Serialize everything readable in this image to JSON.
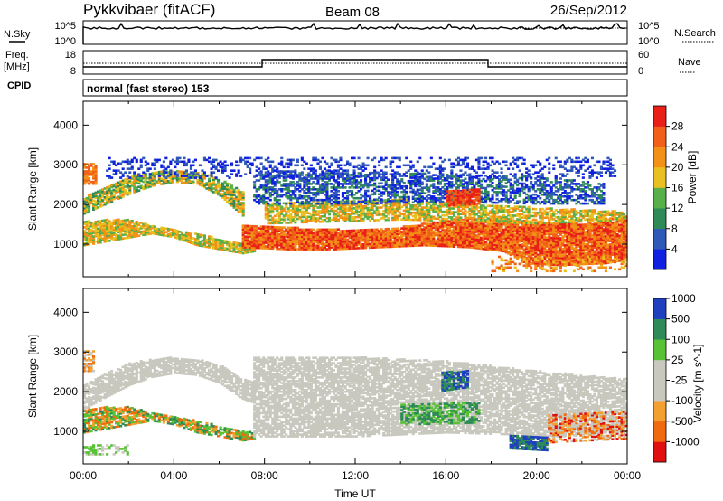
{
  "header": {
    "radar": "Pykkvibaer (fitACF)",
    "beam": "Beam 08",
    "date": "26/Sep/2012"
  },
  "noise_panel": {
    "left_label": "N.Sky",
    "right_label": "N.Search",
    "left_ticks": [
      "10^5",
      "10^0"
    ],
    "right_ticks": [
      "10^5",
      "10^0"
    ]
  },
  "freq_panel": {
    "left_label_1": "Freq.",
    "left_label_2": "[MHz]",
    "right_label": "Nave",
    "left_ticks": [
      "18",
      "8"
    ],
    "right_ticks": [
      "60",
      "0"
    ]
  },
  "cpid": {
    "label": "CPID",
    "value": "normal (fast stereo) 153"
  },
  "colors": {
    "power": [
      "#1020e0",
      "#2f58b8",
      "#2e8b57",
      "#58b04a",
      "#e8c020",
      "#f39018",
      "#f06018",
      "#e82018"
    ],
    "velocity": [
      "#e01010",
      "#f06a10",
      "#f4a030",
      "#c8c8be",
      "#c8c8be",
      "#56c234",
      "#2e8b57",
      "#2040c0"
    ]
  },
  "chart_data": [
    {
      "type": "heatmap",
      "quantity": "power",
      "ylabel": "Slant Range [km]",
      "yticks": [
        1000,
        2000,
        3000,
        4000
      ],
      "ylim": [
        180,
        4600
      ],
      "xlim": [
        0,
        24
      ],
      "colorbar": {
        "label": "Power [dB]",
        "ticks": [
          "4",
          "8",
          "12",
          "16",
          "20",
          "24",
          "28"
        ]
      },
      "bands": [
        {
          "start": 0,
          "end": 7.5,
          "lower": [
            [
              0,
              950
            ],
            [
              1,
              1050
            ],
            [
              2,
              1150
            ],
            [
              3,
              1250
            ],
            [
              4,
              1150
            ],
            [
              5,
              950
            ],
            [
              6,
              850
            ],
            [
              7,
              750
            ],
            [
              7.5,
              800
            ]
          ],
          "upper": [
            [
              0,
              1550
            ],
            [
              1,
              1600
            ],
            [
              2,
              1600
            ],
            [
              3,
              1450
            ],
            [
              4,
              1350
            ],
            [
              5,
              1250
            ],
            [
              6,
              1100
            ],
            [
              7,
              1000
            ],
            [
              7.5,
              950
            ]
          ],
          "levels": [
            3,
            4,
            5
          ],
          "density": 0.85
        },
        {
          "start": 7,
          "end": 24,
          "lower": [
            [
              7,
              900
            ],
            [
              9,
              850
            ],
            [
              11,
              850
            ],
            [
              13,
              900
            ],
            [
              15,
              950
            ],
            [
              17,
              900
            ],
            [
              18.5,
              800
            ],
            [
              19.5,
              500
            ],
            [
              21,
              450
            ],
            [
              23,
              500
            ],
            [
              24,
              600
            ]
          ],
          "upper": [
            [
              7,
              1450
            ],
            [
              9,
              1400
            ],
            [
              11,
              1350
            ],
            [
              13,
              1350
            ],
            [
              15,
              1500
            ],
            [
              17,
              1650
            ],
            [
              18.5,
              1600
            ],
            [
              20,
              1550
            ],
            [
              22,
              1500
            ],
            [
              24,
              1700
            ]
          ],
          "levels": [
            5,
            6,
            7
          ],
          "density": 0.95
        },
        {
          "start": 0,
          "end": 7,
          "lower": [
            [
              0,
              1750
            ],
            [
              1,
              2000
            ],
            [
              2,
              2250
            ],
            [
              3,
              2450
            ],
            [
              4,
              2550
            ],
            [
              5,
              2500
            ],
            [
              6,
              2200
            ],
            [
              7,
              1700
            ]
          ],
          "upper": [
            [
              0,
              2150
            ],
            [
              1,
              2450
            ],
            [
              2,
              2700
            ],
            [
              3,
              2800
            ],
            [
              4,
              2850
            ],
            [
              5,
              2800
            ],
            [
              6,
              2650
            ],
            [
              7,
              2300
            ]
          ],
          "levels": [
            2,
            3,
            4,
            5
          ],
          "density": 0.8
        },
        {
          "start": 8,
          "end": 24,
          "lower": [
            [
              8,
              1500
            ],
            [
              11,
              1550
            ],
            [
              14,
              1600
            ],
            [
              17,
              1550
            ],
            [
              20,
              1500
            ],
            [
              24,
              1600
            ]
          ],
          "upper": [
            [
              8,
              2000
            ],
            [
              11,
              2050
            ],
            [
              14,
              2100
            ],
            [
              17,
              2000
            ],
            [
              20,
              1900
            ],
            [
              24,
              1800
            ]
          ],
          "levels": [
            3,
            4,
            5
          ],
          "density": 0.7
        },
        {
          "start": 7.5,
          "end": 23,
          "lower": [
            [
              7.5,
              2000
            ],
            [
              12,
              2000
            ],
            [
              16,
              2050
            ],
            [
              20,
              2000
            ],
            [
              23,
              2000
            ]
          ],
          "upper": [
            [
              7.5,
              2850
            ],
            [
              12,
              2800
            ],
            [
              16,
              2750
            ],
            [
              20,
              2700
            ],
            [
              23,
              2500
            ]
          ],
          "levels": [
            0,
            1,
            2
          ],
          "density": 0.55
        },
        {
          "start": 1,
          "end": 23.5,
          "lower": [
            [
              1,
              2650
            ],
            [
              24,
              2650
            ]
          ],
          "upper": [
            [
              1,
              3150
            ],
            [
              24,
              3150
            ]
          ],
          "levels": [
            0,
            1
          ],
          "density": 0.25
        },
        {
          "start": 16,
          "end": 17.5,
          "lower": [
            [
              16,
              1950
            ],
            [
              17.5,
              2000
            ]
          ],
          "upper": [
            [
              16,
              2350
            ],
            [
              17.5,
              2400
            ]
          ],
          "levels": [
            6,
            7
          ],
          "density": 0.85
        },
        {
          "start": 0,
          "end": 0.6,
          "lower": [
            [
              0,
              2500
            ],
            [
              0.6,
              2500
            ]
          ],
          "upper": [
            [
              0,
              3000
            ],
            [
              0.6,
              3000
            ]
          ],
          "levels": [
            5,
            6
          ],
          "density": 0.8
        },
        {
          "start": 18,
          "end": 24,
          "lower": [
            [
              18,
              300
            ],
            [
              24,
              300
            ]
          ],
          "upper": [
            [
              18,
              700
            ],
            [
              24,
              700
            ]
          ],
          "levels": [
            4,
            5,
            6
          ],
          "density": 0.3
        }
      ]
    },
    {
      "type": "heatmap",
      "quantity": "velocity",
      "ylabel": "Slant Range [km]",
      "xlabel": "Time UT",
      "yticks": [
        1000,
        2000,
        3000,
        4000
      ],
      "ylim": [
        180,
        4600
      ],
      "xlim": [
        0,
        24
      ],
      "xticks": [
        "00:00",
        "04:00",
        "08:00",
        "12:00",
        "16:00",
        "20:00",
        "00:00"
      ],
      "colorbar": {
        "label": "Velocity [m s^-1]",
        "ticks": [
          "-1000",
          "-500",
          "-100",
          "-25",
          "25",
          "100",
          "500",
          "1000"
        ]
      },
      "bands": [
        {
          "start": 0,
          "end": 7.5,
          "lower": [
            [
              0,
              950
            ],
            [
              1,
              1050
            ],
            [
              2,
              1150
            ],
            [
              3,
              1250
            ],
            [
              4,
              1150
            ],
            [
              5,
              950
            ],
            [
              6,
              850
            ],
            [
              7,
              750
            ],
            [
              7.5,
              800
            ]
          ],
          "upper": [
            [
              0,
              1550
            ],
            [
              1,
              1600
            ],
            [
              2,
              1600
            ],
            [
              3,
              1450
            ],
            [
              4,
              1350
            ],
            [
              5,
              1250
            ],
            [
              6,
              1100
            ],
            [
              7,
              1000
            ],
            [
              7.5,
              950
            ]
          ],
          "levels": [
            1,
            2,
            5,
            6
          ],
          "density": 0.8
        },
        {
          "start": 0,
          "end": 7.5,
          "lower": [
            [
              0,
              1550
            ],
            [
              1,
              1850
            ],
            [
              2,
              2150
            ],
            [
              3,
              2350
            ],
            [
              4,
              2450
            ],
            [
              5,
              2400
            ],
            [
              6,
              2200
            ],
            [
              7,
              1800
            ],
            [
              7.5,
              1700
            ]
          ],
          "upper": [
            [
              0,
              2150
            ],
            [
              1,
              2450
            ],
            [
              2,
              2700
            ],
            [
              3,
              2800
            ],
            [
              4,
              2850
            ],
            [
              5,
              2800
            ],
            [
              6,
              2650
            ],
            [
              7,
              2300
            ],
            [
              7.5,
              2200
            ]
          ],
          "levels": [
            3,
            4
          ],
          "density": 0.8
        },
        {
          "start": 7.5,
          "end": 24,
          "lower": [
            [
              7.5,
              850
            ],
            [
              12,
              850
            ],
            [
              16,
              950
            ],
            [
              19,
              900
            ],
            [
              21,
              850
            ],
            [
              24,
              1000
            ]
          ],
          "upper": [
            [
              7.5,
              2850
            ],
            [
              12,
              2850
            ],
            [
              16,
              2750
            ],
            [
              20,
              2500
            ],
            [
              24,
              2300
            ]
          ],
          "levels": [
            3,
            4
          ],
          "density": 0.75
        },
        {
          "start": 15.8,
          "end": 17,
          "lower": [
            [
              15.8,
              2000
            ],
            [
              17,
              2100
            ]
          ],
          "upper": [
            [
              15.8,
              2500
            ],
            [
              17,
              2500
            ]
          ],
          "levels": [
            7,
            6
          ],
          "density": 0.8
        },
        {
          "start": 14,
          "end": 17.5,
          "lower": [
            [
              14,
              1150
            ],
            [
              17.5,
              1200
            ]
          ],
          "upper": [
            [
              14,
              1650
            ],
            [
              17.5,
              1700
            ]
          ],
          "levels": [
            6,
            5
          ],
          "density": 0.55
        },
        {
          "start": 18.8,
          "end": 20.5,
          "lower": [
            [
              18.8,
              550
            ],
            [
              20.5,
              500
            ]
          ],
          "upper": [
            [
              18.8,
              900
            ],
            [
              20.5,
              850
            ]
          ],
          "levels": [
            7,
            6
          ],
          "density": 0.85
        },
        {
          "start": 20.5,
          "end": 24,
          "lower": [
            [
              20.5,
              700
            ],
            [
              24,
              800
            ]
          ],
          "upper": [
            [
              20.5,
              1400
            ],
            [
              24,
              1500
            ]
          ],
          "levels": [
            0,
            1,
            2,
            3
          ],
          "density": 0.55
        },
        {
          "start": 0,
          "end": 2,
          "lower": [
            [
              0,
              400
            ],
            [
              2,
              400
            ]
          ],
          "upper": [
            [
              0,
              650
            ],
            [
              2,
              650
            ]
          ],
          "levels": [
            4,
            5
          ],
          "density": 0.45
        },
        {
          "start": 0,
          "end": 0.5,
          "lower": [
            [
              0,
              2500
            ],
            [
              0.5,
              2500
            ]
          ],
          "upper": [
            [
              0,
              3000
            ],
            [
              0.5,
              3000
            ]
          ],
          "levels": [
            1,
            2,
            4
          ],
          "density": 0.75
        }
      ]
    }
  ]
}
